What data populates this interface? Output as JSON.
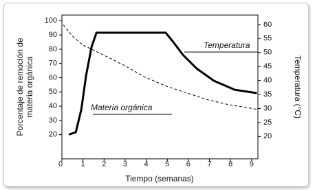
{
  "chart_data": {
    "type": "line",
    "xlabel": "Tiempo (semanas)",
    "ylabel": [
      "Porcentaje de remoción de",
      "materia orgánica"
    ],
    "y2label": "Temperatura (°C)",
    "xlim": [
      0,
      9.3
    ],
    "xticks": [
      0,
      1,
      2,
      3,
      4,
      5,
      6,
      7,
      8,
      9
    ],
    "ylim": [
      3,
      104
    ],
    "yticks": [
      20,
      30,
      40,
      50,
      60,
      70,
      80,
      90,
      100
    ],
    "y2lim": [
      12,
      63.4
    ],
    "y2ticks": [
      20,
      25,
      30,
      35,
      40,
      45,
      50,
      55,
      60
    ],
    "series": [
      {
        "name": "Temperatura",
        "axis": "y2",
        "color": "#000000",
        "line_style": "solid",
        "x": [
          0.33,
          0.66,
          0.92,
          1.15,
          1.41,
          1.64,
          4.92,
          5.25,
          5.74,
          6.39,
          7.21,
          8.2,
          9.25
        ],
        "values": [
          20.7,
          21.5,
          29.6,
          41.8,
          52.1,
          57.1,
          57.1,
          54.1,
          49.2,
          44.3,
          39.9,
          36.7,
          35.5
        ]
      },
      {
        "name": "Materia orgánica",
        "color": "#000000",
        "line_style": "dashed",
        "x": [
          0.07,
          0.49,
          0.98,
          1.97,
          2.95,
          3.93,
          4.92,
          5.9,
          6.89,
          7.87,
          9.25
        ],
        "values": [
          97.1,
          89.4,
          83.1,
          75.9,
          68.7,
          60.5,
          54.2,
          49.4,
          44.6,
          41.2,
          37.8
        ]
      }
    ]
  }
}
